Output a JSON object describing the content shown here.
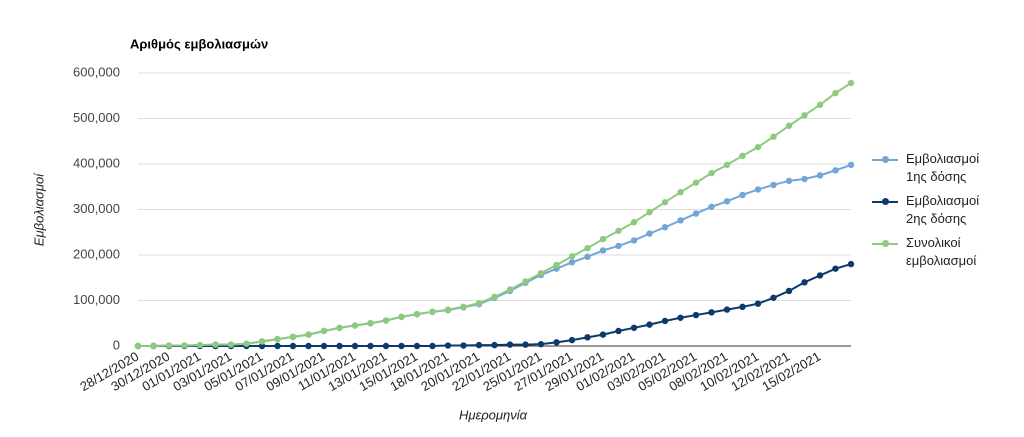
{
  "chart_data": {
    "type": "line",
    "title": "Αριθμός εμβολιασμών",
    "x_label": "Ημερομηνία",
    "y_label": "Εμβολιασμοί",
    "categories": [
      "28/12/2020",
      null,
      "30/12/2020",
      null,
      "01/01/2021",
      null,
      "03/01/2021",
      null,
      "05/01/2021",
      null,
      "07/01/2021",
      null,
      "09/01/2021",
      null,
      "11/01/2021",
      null,
      "13/01/2021",
      null,
      "15/01/2021",
      null,
      "18/01/2021",
      null,
      "20/01/2021",
      null,
      "22/01/2021",
      null,
      "25/01/2021",
      null,
      "27/01/2021",
      null,
      "29/01/2021",
      null,
      "01/02/2021",
      null,
      "03/02/2021",
      null,
      "05/02/2021",
      null,
      "08/02/2021",
      null,
      "10/02/2021",
      null,
      "12/02/2021",
      null,
      "15/02/2021",
      null,
      null
    ],
    "series": [
      {
        "name": "Εμβολιασμοί 1ης δόσης",
        "color": "#73a5d6",
        "values": [
          0,
          0,
          1000,
          1000,
          2000,
          3000,
          3000,
          5000,
          10000,
          15000,
          20000,
          25000,
          33000,
          40000,
          45000,
          50000,
          56000,
          64000,
          70000,
          75000,
          79000,
          85000,
          92000,
          106000,
          121000,
          139000,
          156000,
          170000,
          184000,
          196000,
          210000,
          220000,
          232000,
          247000,
          261000,
          276000,
          291000,
          306000,
          318000,
          332000,
          344000,
          354000,
          363000,
          367000,
          375000,
          386000,
          398000
        ]
      },
      {
        "name": "Εμβολιασμοί 2ης δόσης",
        "color": "#0c3a6b",
        "values": [
          0,
          0,
          0,
          0,
          0,
          0,
          0,
          0,
          0,
          0,
          0,
          0,
          0,
          0,
          0,
          0,
          0,
          0,
          0,
          0,
          1000,
          1000,
          2000,
          2000,
          3000,
          3000,
          4000,
          8000,
          13000,
          19000,
          25000,
          33000,
          40000,
          47000,
          55000,
          62000,
          68000,
          74000,
          80000,
          86000,
          93000,
          106000,
          121000,
          140000,
          155000,
          170000,
          180000
        ]
      },
      {
        "name": "Συνολικοί εμβολιασμοί",
        "color": "#8dca7f",
        "values": [
          0,
          0,
          1000,
          1000,
          2000,
          3000,
          3000,
          5000,
          10000,
          15000,
          20000,
          25000,
          33000,
          40000,
          45000,
          50000,
          56000,
          64000,
          70000,
          75000,
          80000,
          86000,
          94000,
          108000,
          124000,
          142000,
          160000,
          178000,
          197000,
          215000,
          235000,
          253000,
          272000,
          294000,
          316000,
          338000,
          359000,
          380000,
          398000,
          418000,
          437000,
          460000,
          484000,
          507000,
          530000,
          556000,
          578000
        ]
      }
    ],
    "ylim": [
      0,
      600000
    ],
    "yticks": [
      0,
      {
        "value": 100000,
        "label": "100,000"
      },
      {
        "value": 200000,
        "label": "200,000"
      },
      {
        "value": 300000,
        "label": "300,000"
      },
      {
        "value": 400000,
        "label": "400,000"
      },
      {
        "value": 500000,
        "label": "500,000"
      },
      {
        "value": 600000,
        "label": "600,000"
      }
    ],
    "grid": true,
    "legend": "right"
  }
}
